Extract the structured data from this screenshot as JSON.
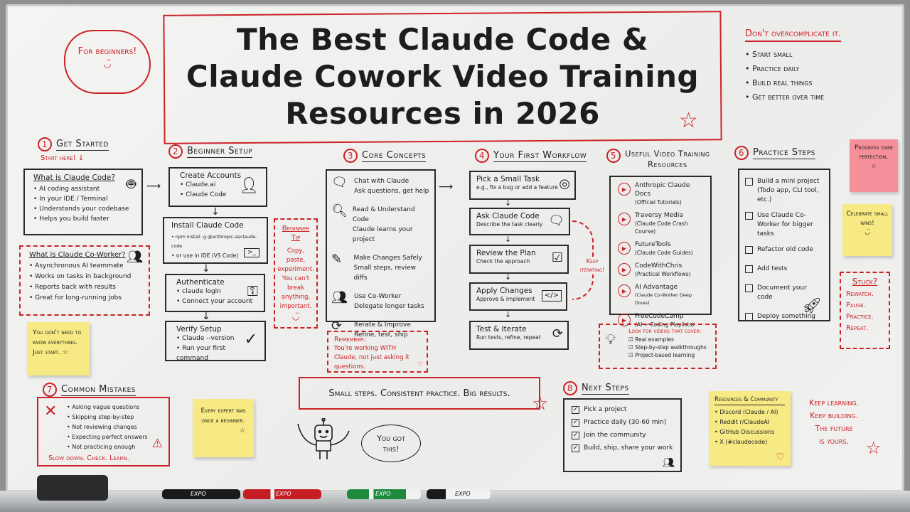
{
  "colors": {
    "marker_red": "#cc2227",
    "marker_black": "#1d1d1d",
    "sticky_yellow": "#f7ea84",
    "sticky_pink": "#f58f9a"
  },
  "title": {
    "line1": "The Best Claude Code &",
    "line2": "Claude Cowork Video Training",
    "line3": "Resources in 2026"
  },
  "cloud": "For beginners!",
  "top_right": {
    "heading": "Don't overcomplicate it.",
    "items": [
      "Start small",
      "Practice daily",
      "Build real things",
      "Get better over time"
    ]
  },
  "s1": {
    "num": "1",
    "title": "Get Started",
    "start_here": "Start here!",
    "code_box": {
      "title": "What is Claude Code?",
      "items": [
        "AI coding assistant",
        "In your IDE / Terminal",
        "Understands your codebase",
        "Helps you build faster"
      ],
      "icon": "robot-icon"
    },
    "coworker_box": {
      "title": "What is Claude Co-Worker?",
      "items": [
        "Asynchronous AI teammate",
        "Works on tasks in background",
        "Reports back with results",
        "Great for long-running jobs"
      ],
      "icon": "people-icon"
    },
    "sticky": "You don't need to know everything. Just start."
  },
  "s2": {
    "num": "2",
    "title": "Beginner Setup",
    "steps": [
      {
        "title": "Create Accounts",
        "items": [
          "Claude.ai",
          "Claude Code"
        ],
        "icon": "user-icon"
      },
      {
        "title": "Install Claude Code",
        "items": [
          "npm install -g @anthropic-ai/claude-code",
          "or use in IDE (VS Code)"
        ],
        "icon": "terminal-icon"
      },
      {
        "title": "Authenticate",
        "items": [
          "claude login",
          "Connect your account"
        ],
        "icon": "key-icon"
      },
      {
        "title": "Verify Setup",
        "items": [
          "Claude --version",
          "Run your first command"
        ],
        "icon": "checkmark-icon"
      }
    ],
    "tip_title": "Beginner Tip",
    "tip_text": "Copy, paste, experiment. You can't break anything, important."
  },
  "s3": {
    "num": "3",
    "title": "Core Concepts",
    "items": [
      {
        "title": "Chat with Claude",
        "sub": "Ask questions, get help",
        "icon": "chat-bubble-icon"
      },
      {
        "title": "Read & Understand Code",
        "sub": "Claude learns your project",
        "icon": "document-search-icon"
      },
      {
        "title": "Make Changes Safely",
        "sub": "Small steps, review diffs",
        "icon": "pencil-icon"
      },
      {
        "title": "Use Co-Worker",
        "sub": "Delegate longer tasks",
        "icon": "people-icon"
      },
      {
        "title": "Iterate & Improve",
        "sub": "Refine, test, ship",
        "icon": "refresh-icon"
      }
    ],
    "remember_title": "Remember:",
    "remember_text": "You're working WITH Claude, not just asking it questions."
  },
  "s4": {
    "num": "4",
    "title": "Your First Workflow",
    "steps": [
      {
        "title": "Pick a Small Task",
        "sub": "e.g., fix a bug or add a feature",
        "icon": "target-icon"
      },
      {
        "title": "Ask Claude Code",
        "sub": "Describe the task clearly",
        "icon": "chat-bubble-icon"
      },
      {
        "title": "Review the Plan",
        "sub": "Check the approach",
        "icon": "checklist-icon"
      },
      {
        "title": "Apply Changes",
        "sub": "Approve & implement",
        "icon": "code-window-icon"
      },
      {
        "title": "Test & Iterate",
        "sub": "Run tests, refine, repeat",
        "icon": "refresh-icon"
      }
    ],
    "loop_label": "Keep iterating!"
  },
  "s5": {
    "num": "5",
    "title_line1": "Useful Video Training",
    "title_line2": "Resources",
    "resources": [
      {
        "name": "Anthropic Claude Docs",
        "sub": "(Official Tutorials)"
      },
      {
        "name": "Traversy Media",
        "sub": "(Claude Code Crash Course)"
      },
      {
        "name": "FutureTools",
        "sub": "(Claude Code Guides)"
      },
      {
        "name": "CodeWithChris",
        "sub": "(Practical Workflows)"
      },
      {
        "name": "AI Advantage",
        "sub": "(Claude Co-Worker Deep Dives)"
      },
      {
        "name": "FreeCodeCamp",
        "sub": "(AI + Coding Playlists)"
      }
    ],
    "look_title": "Look for videos that cover:",
    "look_items": [
      "Real examples",
      "Step-by-step walkthroughs",
      "Project-based learning"
    ]
  },
  "s6": {
    "num": "6",
    "title": "Practice Steps",
    "items": [
      "Build a mini project (Todo app, CLI tool, etc.)",
      "Use Claude Co-Worker for bigger tasks",
      "Refactor old code",
      "Add tests",
      "Document your code",
      "Deploy something"
    ]
  },
  "sticky_pink": "Progress over perfection.",
  "sticky_celebrate": "Celebrate small wins!",
  "stuck": {
    "title": "Stuck?",
    "lines": [
      "Rewatch.",
      "Pause.",
      "Practice.",
      "Repeat."
    ]
  },
  "s7": {
    "num": "7",
    "title": "Common Mistakes",
    "items": [
      "Asking vague questions",
      "Skipping step-by-step",
      "Not reviewing changes",
      "Expecting perfect answers",
      "Not practicing enough"
    ],
    "footer": "Slow down. Check. Learn."
  },
  "sticky_expert": "Every expert was once a beginner.",
  "slogan": "Small steps. Consistent practice. Big results.",
  "robot_speech": "You got this!",
  "s8": {
    "num": "8",
    "title": "Next Steps",
    "items": [
      "Pick a project",
      "Practice daily (30-60 min)",
      "Join the community",
      "Build, ship, share your work"
    ]
  },
  "community": {
    "title": "Resources & Community",
    "items": [
      "Discord (Claude / AI)",
      "Reddit r/ClaudeAI",
      "GitHub Discussions",
      "X (#claudecode)"
    ]
  },
  "closing": [
    "Keep learning.",
    "Keep building.",
    "The future",
    "is yours."
  ],
  "markers": [
    "EXPO",
    "EXPO",
    "EXPO",
    "EXPO"
  ]
}
